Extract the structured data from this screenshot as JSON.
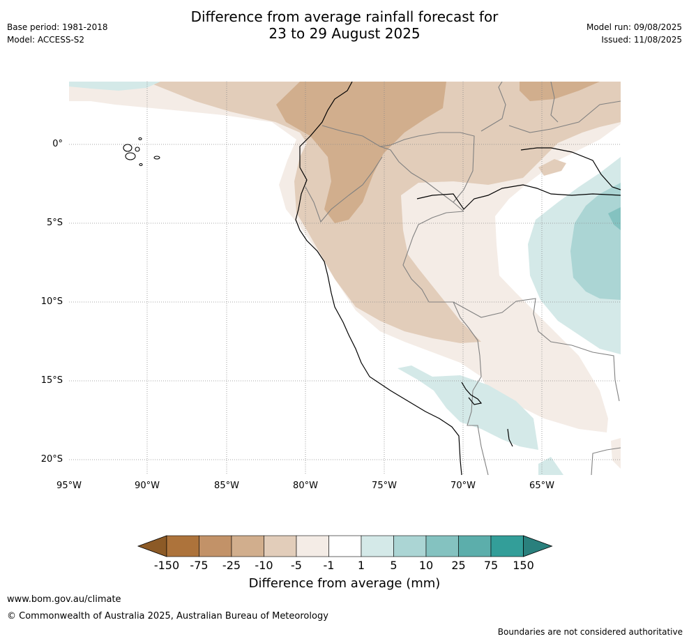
{
  "header": {
    "title_line1": "Difference from average rainfall forecast for",
    "title_line2": "23 to 29 August 2025",
    "base_period": "Base period: 1981-2018",
    "model": "Model: ACCESS-S2",
    "model_run": "Model run: 09/08/2025",
    "issued": "Issued: 11/08/2025"
  },
  "map": {
    "lat_labels": [
      "0°",
      "5°S",
      "10°S",
      "15°S",
      "20°S"
    ],
    "lon_labels": [
      "95°W",
      "90°W",
      "85°W",
      "80°W",
      "75°W",
      "70°W",
      "65°W"
    ],
    "land_outline_color": "#000000",
    "border_color": "#808080"
  },
  "colorbar": {
    "title": "Difference from average (mm)",
    "tick_labels": [
      "-150",
      "-75",
      "-25",
      "-10",
      "-5",
      "-1",
      "1",
      "5",
      "10",
      "25",
      "75",
      "150"
    ],
    "colors": [
      "#8c5a26",
      "#ad733b",
      "#c29268",
      "#d1ae8d",
      "#e2cdba",
      "#f4ece6",
      "#ffffff",
      "#d4e9e8",
      "#abd5d4",
      "#84c2c0",
      "#5caeab",
      "#339e99",
      "#2a807d"
    ]
  },
  "footer": {
    "website": "www.bom.gov.au/climate",
    "copyright": "© Commonwealth of Australia 2025, Australian Bureau of Meteorology",
    "disclaimer": "Boundaries are not considered authoritative"
  }
}
